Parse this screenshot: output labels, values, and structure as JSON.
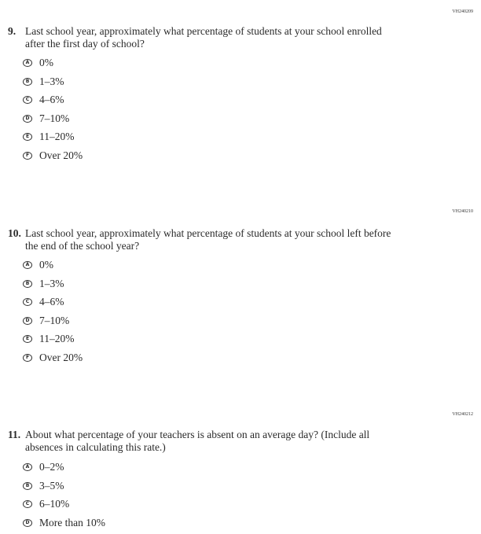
{
  "questions": [
    {
      "code": "VH240209",
      "number": "9.",
      "text": "Last school year, approximately what percentage of students at your school enrolled after the first day of school?",
      "options": [
        {
          "letter": "A",
          "label": "0%"
        },
        {
          "letter": "B",
          "label": "1–3%"
        },
        {
          "letter": "C",
          "label": "4–6%"
        },
        {
          "letter": "D",
          "label": "7–10%"
        },
        {
          "letter": "E",
          "label": "11–20%"
        },
        {
          "letter": "F",
          "label": "Over 20%"
        }
      ]
    },
    {
      "code": "VH240210",
      "number": "10.",
      "text": "Last school year, approximately what percentage of students at your school left before the end of the school year?",
      "options": [
        {
          "letter": "A",
          "label": "0%"
        },
        {
          "letter": "B",
          "label": "1–3%"
        },
        {
          "letter": "C",
          "label": "4–6%"
        },
        {
          "letter": "D",
          "label": "7–10%"
        },
        {
          "letter": "E",
          "label": "11–20%"
        },
        {
          "letter": "F",
          "label": "Over 20%"
        }
      ]
    },
    {
      "code": "VH240212",
      "number": "11.",
      "text": "About what percentage of your teachers is absent on an average day? (Include all absences in calculating this rate.)",
      "options": [
        {
          "letter": "A",
          "label": "0–2%"
        },
        {
          "letter": "B",
          "label": "3–5%"
        },
        {
          "letter": "C",
          "label": "6–10%"
        },
        {
          "letter": "D",
          "label": "More than 10%"
        }
      ]
    }
  ]
}
